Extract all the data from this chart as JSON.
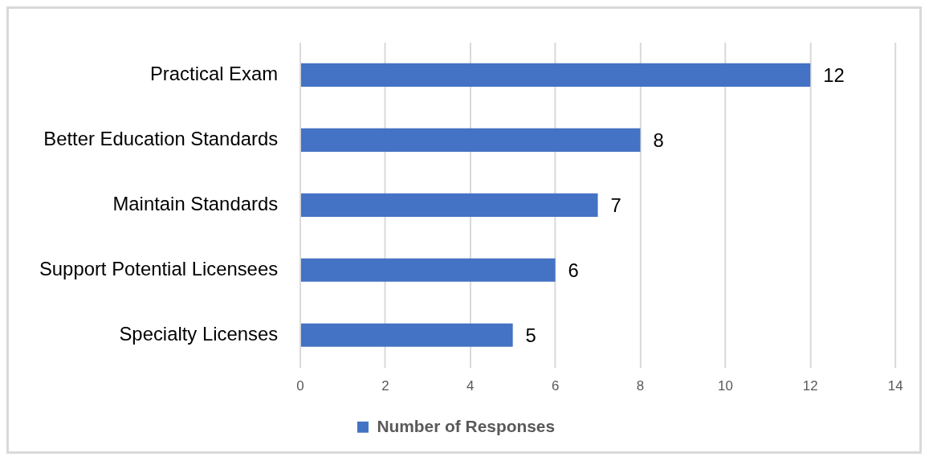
{
  "chart_data": {
    "type": "bar",
    "orientation": "horizontal",
    "categories": [
      "Practical Exam",
      "Better Education Standards",
      "Maintain Standards",
      "Support Potential Licensees",
      "Specialty Licenses"
    ],
    "series": [
      {
        "name": "Number of Responses",
        "color": "#4472c4",
        "values": [
          12,
          8,
          7,
          6,
          5
        ]
      }
    ],
    "xlim": [
      0,
      14
    ],
    "xticks": [
      0,
      2,
      4,
      6,
      8,
      10,
      12,
      14
    ],
    "grid": "x",
    "legend": "bottom",
    "data_labels": true
  }
}
